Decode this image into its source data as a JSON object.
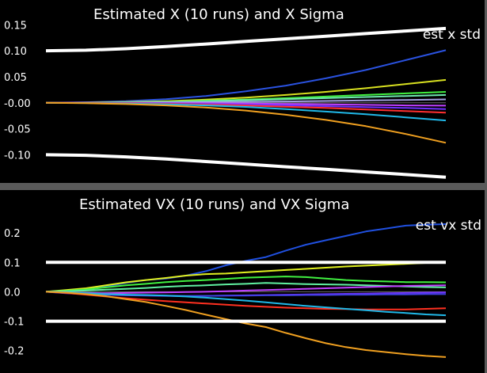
{
  "chart_data": [
    {
      "type": "line",
      "title": "Estimated X (10 runs) and X Sigma",
      "legend": {
        "label": "est x std",
        "placement": "top-right"
      },
      "x": [
        0,
        0.1,
        0.2,
        0.3,
        0.4,
        0.5,
        0.6,
        0.7,
        0.8,
        0.9,
        1.0
      ],
      "ylim": [
        -0.145,
        0.158
      ],
      "yticks": [
        0.15,
        0.1,
        0.05,
        -0.0,
        -0.05,
        -0.1
      ],
      "ytick_labels": [
        "0.15",
        "0.10",
        "0.05",
        "-0.00",
        "-0.05",
        "-0.10"
      ],
      "zero_line": true,
      "sigma_bands": [
        {
          "color": "#ffffff",
          "values": [
            0.1,
            0.101,
            0.104,
            0.108,
            0.113,
            0.118,
            0.123,
            0.128,
            0.133,
            0.138,
            0.143
          ]
        },
        {
          "color": "#ffffff",
          "values": [
            -0.1,
            -0.101,
            -0.104,
            -0.108,
            -0.113,
            -0.118,
            -0.123,
            -0.128,
            -0.133,
            -0.138,
            -0.143
          ]
        }
      ],
      "series": [
        {
          "color": "#2a52e0",
          "values": [
            0,
            0.001,
            0.003,
            0.007,
            0.013,
            0.022,
            0.033,
            0.047,
            0.063,
            0.082,
            0.101
          ]
        },
        {
          "color": "#d8e020",
          "values": [
            0,
            0.0005,
            0.0015,
            0.003,
            0.006,
            0.01,
            0.015,
            0.021,
            0.028,
            0.036,
            0.044
          ]
        },
        {
          "color": "#40f040",
          "values": [
            0,
            0.0003,
            0.001,
            0.002,
            0.004,
            0.006,
            0.009,
            0.012,
            0.015,
            0.018,
            0.021
          ]
        },
        {
          "color": "#70e8b0",
          "values": [
            0,
            0.0002,
            0.0008,
            0.0017,
            0.003,
            0.005,
            0.007,
            0.009,
            0.011,
            0.013,
            0.015
          ]
        },
        {
          "color": "#a0a0e0",
          "values": [
            0,
            0.0001,
            0.0003,
            0.0007,
            0.0012,
            0.0018,
            0.0026,
            0.0035,
            0.0045,
            0.0055,
            0.0065
          ]
        },
        {
          "color": "#c040ff",
          "values": [
            0,
            -0.0001,
            -0.0003,
            -0.0006,
            -0.001,
            -0.0015,
            -0.0022,
            -0.003,
            -0.004,
            -0.005,
            -0.0055
          ]
        },
        {
          "color": "#7030ff",
          "values": [
            0,
            -0.0002,
            -0.0006,
            -0.0013,
            -0.0022,
            -0.0034,
            -0.0048,
            -0.0064,
            -0.0082,
            -0.01,
            -0.012
          ]
        },
        {
          "color": "#ff3030",
          "values": [
            0,
            -0.0003,
            -0.001,
            -0.002,
            -0.0035,
            -0.0053,
            -0.0075,
            -0.01,
            -0.013,
            -0.016,
            -0.019
          ]
        },
        {
          "color": "#20b8e8",
          "values": [
            0,
            -0.0005,
            -0.0015,
            -0.003,
            -0.005,
            -0.008,
            -0.012,
            -0.017,
            -0.022,
            -0.028,
            -0.034
          ]
        },
        {
          "color": "#f0a020",
          "values": [
            0,
            -0.0008,
            -0.0025,
            -0.005,
            -0.009,
            -0.015,
            -0.023,
            -0.033,
            -0.045,
            -0.06,
            -0.077
          ]
        }
      ]
    },
    {
      "type": "line",
      "title": "Estimated VX (10 runs) and VX Sigma",
      "legend": {
        "label": "est vx std",
        "placement": "top-right"
      },
      "x": [
        0,
        0.05,
        0.1,
        0.15,
        0.2,
        0.25,
        0.3,
        0.35,
        0.4,
        0.45,
        0.5,
        0.55,
        0.6,
        0.65,
        0.7,
        0.75,
        0.8,
        0.85,
        0.9,
        0.95,
        1.0
      ],
      "ylim": [
        -0.26,
        0.265
      ],
      "yticks": [
        0.2,
        0.1,
        0.0,
        -0.1,
        -0.2
      ],
      "ytick_labels": [
        "0.2",
        "0.1",
        "0.0",
        "-0.1",
        "-0.2"
      ],
      "zero_line": true,
      "sigma_bands": [
        {
          "color": "#ffffff",
          "values": [
            0.1,
            0.1,
            0.1,
            0.1,
            0.1,
            0.1,
            0.1,
            0.1,
            0.1,
            0.1,
            0.1,
            0.1,
            0.1,
            0.1,
            0.1,
            0.1,
            0.1,
            0.1,
            0.1,
            0.1,
            0.1
          ]
        },
        {
          "color": "#ffffff",
          "values": [
            -0.1,
            -0.1,
            -0.1,
            -0.1,
            -0.1,
            -0.1,
            -0.1,
            -0.1,
            -0.1,
            -0.1,
            -0.1,
            -0.1,
            -0.1,
            -0.1,
            -0.1,
            -0.1,
            -0.1,
            -0.1,
            -0.1,
            -0.1,
            -0.1
          ]
        }
      ],
      "series": [
        {
          "color": "#2050e0",
          "values": [
            0,
            0.004,
            0.01,
            0.018,
            0.03,
            0.04,
            0.045,
            0.055,
            0.07,
            0.09,
            0.105,
            0.118,
            0.14,
            0.16,
            0.175,
            0.19,
            0.205,
            0.215,
            0.225,
            0.228,
            0.23
          ]
        },
        {
          "color": "#e0f020",
          "values": [
            0,
            0.006,
            0.012,
            0.022,
            0.032,
            0.04,
            0.047,
            0.055,
            0.06,
            0.062,
            0.066,
            0.07,
            0.074,
            0.078,
            0.082,
            0.086,
            0.089,
            0.092,
            0.095,
            0.098,
            0.1
          ]
        },
        {
          "color": "#40f040",
          "values": [
            0,
            0.003,
            0.008,
            0.015,
            0.022,
            0.027,
            0.033,
            0.037,
            0.04,
            0.044,
            0.048,
            0.05,
            0.052,
            0.05,
            0.045,
            0.04,
            0.037,
            0.035,
            0.033,
            0.033,
            0.032
          ]
        },
        {
          "color": "#60f0a0",
          "values": [
            0,
            0.002,
            0.004,
            0.007,
            0.01,
            0.013,
            0.017,
            0.02,
            0.022,
            0.025,
            0.027,
            0.03,
            0.028,
            0.026,
            0.025,
            0.024,
            0.022,
            0.02,
            0.018,
            0.016,
            0.015
          ]
        },
        {
          "color": "#c040ff",
          "values": [
            0,
            -0.002,
            -0.004,
            -0.005,
            -0.004,
            -0.003,
            -0.002,
            -0.001,
            0.0,
            0.002,
            0.004,
            0.006,
            0.008,
            0.01,
            0.012,
            0.014,
            0.016,
            0.018,
            0.02,
            0.021,
            0.022
          ]
        },
        {
          "color": "#7030ff",
          "values": [
            0,
            -0.005,
            -0.008,
            -0.01,
            -0.012,
            -0.013,
            -0.014,
            -0.015,
            -0.014,
            -0.013,
            -0.012,
            -0.011,
            -0.01,
            -0.009,
            -0.008,
            -0.007,
            -0.006,
            -0.005,
            -0.004,
            -0.003,
            -0.002
          ]
        },
        {
          "color": "#4040e0",
          "values": [
            0,
            -0.004,
            -0.007,
            -0.009,
            -0.011,
            -0.012,
            -0.013,
            -0.014,
            -0.014,
            -0.013,
            -0.013,
            -0.012,
            -0.012,
            -0.011,
            -0.011,
            -0.01,
            -0.01,
            -0.009,
            -0.009,
            -0.008,
            -0.008
          ]
        },
        {
          "color": "#ff3020",
          "values": [
            0,
            -0.004,
            -0.01,
            -0.016,
            -0.022,
            -0.027,
            -0.032,
            -0.036,
            -0.04,
            -0.044,
            -0.048,
            -0.051,
            -0.054,
            -0.056,
            -0.058,
            -0.059,
            -0.06,
            -0.06,
            -0.06,
            -0.058,
            -0.056
          ]
        },
        {
          "color": "#20b8e8",
          "values": [
            0,
            -0.002,
            -0.005,
            -0.008,
            -0.01,
            -0.011,
            -0.013,
            -0.016,
            -0.02,
            -0.025,
            -0.03,
            -0.036,
            -0.042,
            -0.048,
            -0.053,
            -0.058,
            -0.063,
            -0.068,
            -0.072,
            -0.077,
            -0.08
          ]
        },
        {
          "color": "#f0a020",
          "values": [
            0,
            -0.003,
            -0.008,
            -0.015,
            -0.025,
            -0.035,
            -0.048,
            -0.062,
            -0.078,
            -0.093,
            -0.108,
            -0.12,
            -0.14,
            -0.158,
            -0.175,
            -0.188,
            -0.198,
            -0.205,
            -0.212,
            -0.218,
            -0.222
          ]
        }
      ]
    }
  ]
}
